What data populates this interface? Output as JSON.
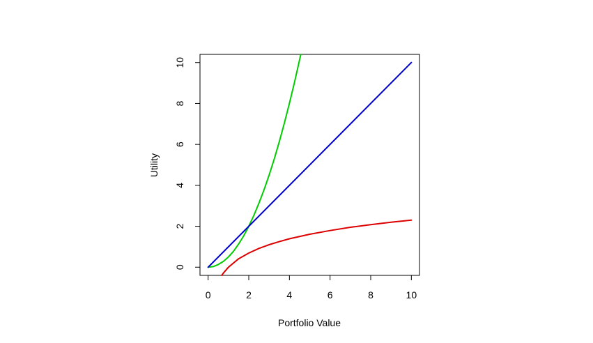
{
  "chart_data": {
    "type": "line",
    "title": "",
    "xlabel": "Portfolio Value",
    "ylabel": "Utility",
    "xlim": [
      -0.4,
      10.4
    ],
    "ylim": [
      -0.4,
      10.4
    ],
    "x_ticks": [
      0,
      2,
      4,
      6,
      8,
      10
    ],
    "y_ticks": [
      0,
      2,
      4,
      6,
      8,
      10
    ],
    "grid": false,
    "legend": "none",
    "series": [
      {
        "color": "#00cc00",
        "x": [
          0,
          0.25,
          0.5,
          0.75,
          1,
          1.25,
          1.5,
          1.75,
          2,
          2.25,
          2.5,
          2.75,
          3,
          3.25,
          3.5,
          3.75,
          4,
          4.25,
          4.5,
          4.56
        ],
        "y": [
          0,
          0.03,
          0.13,
          0.28,
          0.5,
          0.78,
          1.13,
          1.53,
          2.0,
          2.53,
          3.13,
          3.78,
          4.5,
          5.28,
          6.13,
          7.03,
          8.0,
          9.03,
          10.13,
          10.4
        ]
      },
      {
        "color": "#0000cc",
        "x": [
          0,
          10
        ],
        "y": [
          0,
          10
        ]
      },
      {
        "color": "#dd0000",
        "x": [
          0.67,
          0.75,
          1,
          1.5,
          2,
          2.5,
          3,
          3.5,
          4,
          5,
          6,
          7,
          8,
          9,
          10
        ],
        "y": [
          -0.4,
          -0.29,
          0,
          0.41,
          0.69,
          0.92,
          1.1,
          1.25,
          1.39,
          1.61,
          1.79,
          1.95,
          2.08,
          2.2,
          2.3
        ]
      }
    ]
  }
}
